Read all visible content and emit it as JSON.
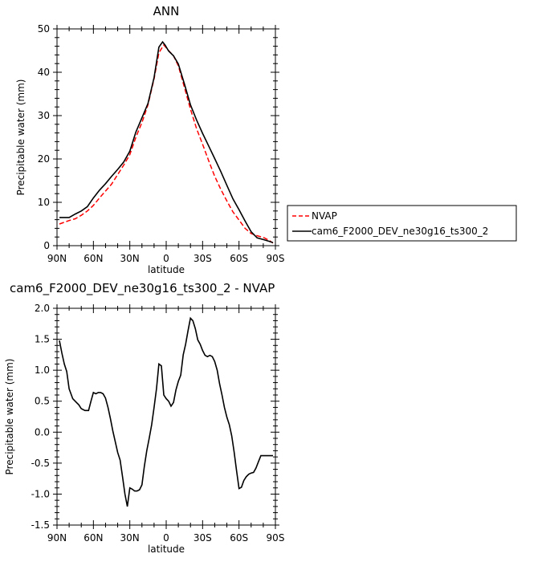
{
  "chart_data": [
    {
      "type": "line",
      "title": "ANN",
      "xlabel": "latitude",
      "ylabel": "Precipitable water (mm)",
      "xlim": [
        -90,
        90
      ],
      "ylim": [
        0,
        50
      ],
      "x_ticks": [
        -90,
        -60,
        -30,
        0,
        30,
        60,
        90
      ],
      "x_tick_labels": [
        "90N",
        "60N",
        "30N",
        "0",
        "30S",
        "60S",
        "90S"
      ],
      "y_ticks": [
        0,
        10,
        20,
        30,
        40,
        50
      ],
      "y_tick_labels": [
        "0",
        "10",
        "20",
        "30",
        "40",
        "50"
      ],
      "legend": "right",
      "series": [
        {
          "name": "NVAP",
          "color": "#ff0000",
          "dash": "dashed",
          "x": [
            -88,
            -80,
            -75,
            -70,
            -65,
            -60,
            -55,
            -50,
            -45,
            -40,
            -35,
            -30,
            -25,
            -20,
            -15,
            -10,
            -6,
            -2,
            2,
            6,
            10,
            15,
            20,
            25,
            30,
            35,
            40,
            45,
            50,
            55,
            60,
            65,
            70,
            75,
            80,
            85,
            88
          ],
          "y": [
            5.0,
            5.8,
            6.2,
            7.0,
            8.0,
            9.3,
            11.0,
            12.6,
            14.2,
            16.4,
            18.6,
            21.0,
            25.0,
            28.4,
            32.5,
            38.5,
            44.5,
            46.3,
            45.0,
            43.8,
            41.5,
            36.5,
            31.5,
            27.0,
            23.4,
            19.6,
            16.0,
            13.0,
            10.3,
            7.8,
            5.9,
            4.0,
            2.8,
            2.3,
            1.9,
            1.2,
            0.6
          ]
        },
        {
          "name": "cam6_F2000_DEV_ne30g16_ts300_2",
          "color": "#000000",
          "dash": "solid",
          "x": [
            -88,
            -84,
            -80,
            -75,
            -70,
            -65,
            -60,
            -55,
            -50,
            -45,
            -40,
            -35,
            -30,
            -25,
            -20,
            -15,
            -10,
            -6,
            -3,
            -1,
            2,
            6,
            10,
            15,
            20,
            25,
            30,
            35,
            40,
            45,
            50,
            55,
            60,
            65,
            70,
            75,
            80,
            85,
            88
          ],
          "y": [
            6.5,
            6.5,
            6.5,
            7.3,
            8.0,
            9.0,
            11.0,
            12.8,
            14.3,
            16.0,
            17.6,
            19.3,
            21.8,
            26.2,
            29.5,
            32.8,
            38.8,
            45.8,
            47.0,
            46.3,
            44.9,
            43.8,
            41.9,
            37.3,
            32.5,
            29.0,
            25.9,
            23.0,
            20.1,
            17.1,
            13.9,
            10.8,
            8.3,
            5.7,
            3.2,
            1.8,
            1.4,
            1.0,
            0.7
          ]
        }
      ]
    },
    {
      "type": "line",
      "title": "cam6_F2000_DEV_ne30g16_ts300_2 - NVAP",
      "xlabel": "latitude",
      "ylabel": "Precipitable water (mm)",
      "xlim": [
        -90,
        90
      ],
      "ylim": [
        -1.5,
        2.0
      ],
      "x_ticks": [
        -90,
        -60,
        -30,
        0,
        30,
        60,
        90
      ],
      "x_tick_labels": [
        "90N",
        "60N",
        "30N",
        "0",
        "30S",
        "60S",
        "90S"
      ],
      "y_ticks": [
        -1.5,
        -1.0,
        -0.5,
        0.0,
        0.5,
        1.0,
        1.5,
        2.0
      ],
      "y_tick_labels": [
        "-1.5",
        "-1.0",
        "-0.5",
        "0.0",
        "0.5",
        "1.0",
        "1.5",
        "2.0"
      ],
      "series": [
        {
          "color": "#000000",
          "dash": "solid",
          "x": [
            -88,
            -86,
            -84,
            -82,
            -80,
            -77,
            -74,
            -72,
            -70,
            -67,
            -64,
            -62,
            -60,
            -58,
            -56,
            -54,
            -52,
            -50,
            -48,
            -46,
            -44,
            -42,
            -40,
            -38,
            -36,
            -34,
            -32,
            -30,
            -28,
            -26,
            -24,
            -22,
            -20,
            -18,
            -16,
            -14,
            -12,
            -10,
            -8,
            -6,
            -4,
            -2,
            0,
            2,
            4,
            6,
            8,
            10,
            12,
            14,
            16,
            18,
            20,
            22,
            24,
            26,
            28,
            30,
            32,
            34,
            36,
            38,
            40,
            42,
            44,
            46,
            48,
            50,
            52,
            54,
            56,
            58,
            60,
            62,
            64,
            66,
            68,
            70,
            72,
            74,
            76,
            78,
            80,
            82,
            84,
            86,
            88
          ],
          "y": [
            1.48,
            1.28,
            1.1,
            0.98,
            0.7,
            0.54,
            0.48,
            0.44,
            0.38,
            0.35,
            0.35,
            0.5,
            0.64,
            0.62,
            0.64,
            0.64,
            0.62,
            0.55,
            0.4,
            0.22,
            0.02,
            -0.15,
            -0.33,
            -0.45,
            -0.72,
            -1.0,
            -1.2,
            -0.9,
            -0.92,
            -0.95,
            -0.95,
            -0.93,
            -0.85,
            -0.55,
            -0.3,
            -0.1,
            0.12,
            0.4,
            0.7,
            1.1,
            1.07,
            0.6,
            0.54,
            0.5,
            0.42,
            0.48,
            0.68,
            0.82,
            0.92,
            1.25,
            1.42,
            1.64,
            1.84,
            1.8,
            1.67,
            1.49,
            1.42,
            1.32,
            1.24,
            1.22,
            1.24,
            1.22,
            1.14,
            1.0,
            0.78,
            0.6,
            0.4,
            0.24,
            0.12,
            -0.06,
            -0.32,
            -0.62,
            -0.91,
            -0.89,
            -0.78,
            -0.72,
            -0.68,
            -0.66,
            -0.65,
            -0.58,
            -0.48,
            -0.38,
            -0.38,
            -0.38,
            -0.38,
            -0.38,
            -0.38
          ]
        }
      ]
    }
  ]
}
